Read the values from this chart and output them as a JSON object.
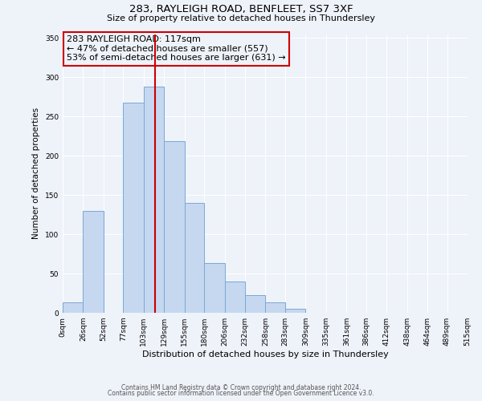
{
  "title1": "283, RAYLEIGH ROAD, BENFLEET, SS7 3XF",
  "title2": "Size of property relative to detached houses in Thundersley",
  "xlabel": "Distribution of detached houses by size in Thundersley",
  "ylabel": "Number of detached properties",
  "bar_edges": [
    0,
    26,
    52,
    77,
    103,
    129,
    155,
    180,
    206,
    232,
    258,
    283,
    309,
    335,
    361,
    386,
    412,
    438,
    464,
    489,
    515
  ],
  "bar_heights": [
    13,
    130,
    0,
    268,
    288,
    219,
    140,
    63,
    40,
    22,
    13,
    5,
    0,
    0,
    0,
    0,
    0,
    0,
    0,
    0
  ],
  "bar_color": "#c5d8f0",
  "bar_edgecolor": "#7aa8d4",
  "vline_x": 117,
  "vline_color": "#cc0000",
  "annotation_line1": "283 RAYLEIGH ROAD: 117sqm",
  "annotation_line2": "← 47% of detached houses are smaller (557)",
  "annotation_line3": "53% of semi-detached houses are larger (631) →",
  "box_edgecolor": "#cc0000",
  "ylim": [
    0,
    355
  ],
  "yticks": [
    0,
    50,
    100,
    150,
    200,
    250,
    300,
    350
  ],
  "xtick_labels": [
    "0sqm",
    "26sqm",
    "52sqm",
    "77sqm",
    "103sqm",
    "129sqm",
    "155sqm",
    "180sqm",
    "206sqm",
    "232sqm",
    "258sqm",
    "283sqm",
    "309sqm",
    "335sqm",
    "361sqm",
    "386sqm",
    "412sqm",
    "438sqm",
    "464sqm",
    "489sqm",
    "515sqm"
  ],
  "footer1": "Contains HM Land Registry data © Crown copyright and database right 2024.",
  "footer2": "Contains public sector information licensed under the Open Government Licence v3.0.",
  "bg_color": "#eef2f9",
  "grid_color": "#ffffff"
}
